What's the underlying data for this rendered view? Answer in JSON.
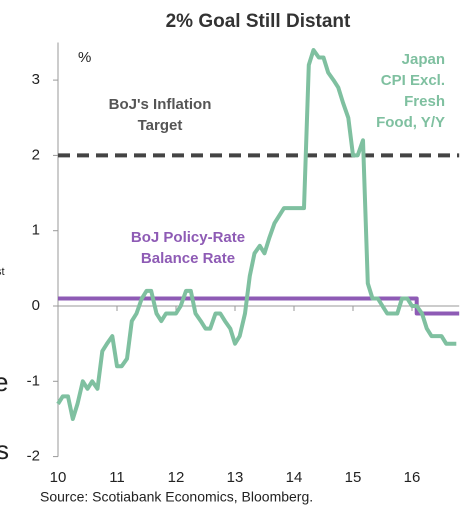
{
  "chart_data": {
    "type": "line",
    "title": "2% Goal Still Distant",
    "y_unit": "%",
    "source": "Source: Scotiabank Economics, Bloomberg.",
    "edge_fragments": [
      "st",
      "e",
      "s"
    ],
    "xlim": [
      10,
      16.8
    ],
    "xticks": [
      10,
      11,
      12,
      13,
      14,
      15,
      16
    ],
    "ylim": [
      -2,
      3.5
    ],
    "yticks": [
      -2,
      -1,
      0,
      1,
      2,
      3
    ],
    "annotations": [
      {
        "lines": [
          "BoJ's Inflation",
          "Target"
        ],
        "color": "#555555"
      },
      {
        "lines": [
          "BoJ Policy-Rate",
          "Balance Rate"
        ],
        "color": "#8e5bb5"
      },
      {
        "lines": [
          "Japan",
          "CPI Excl.",
          "Fresh",
          "Food, Y/Y"
        ],
        "color": "#7fc0a0"
      }
    ],
    "series": [
      {
        "name": "BoJ's Inflation Target",
        "color": "#444444",
        "dashed": true,
        "width": 4,
        "x": [
          10,
          16.8
        ],
        "values": [
          2,
          2
        ]
      },
      {
        "name": "BoJ Policy-Rate Balance Rate",
        "color": "#8e5bb5",
        "dashed": false,
        "width": 4,
        "x": [
          10,
          16.08,
          16.08,
          16.8
        ],
        "values": [
          0.1,
          0.1,
          -0.1,
          -0.1
        ]
      },
      {
        "name": "Japan CPI Excl. Fresh Food, Y/Y",
        "color": "#7fc0a0",
        "dashed": false,
        "width": 4,
        "x": [
          10,
          10.08,
          10.17,
          10.25,
          10.33,
          10.42,
          10.5,
          10.58,
          10.67,
          10.75,
          10.83,
          10.92,
          11,
          11.08,
          11.17,
          11.25,
          11.33,
          11.42,
          11.5,
          11.58,
          11.67,
          11.75,
          11.83,
          11.92,
          12,
          12.08,
          12.17,
          12.25,
          12.33,
          12.42,
          12.5,
          12.58,
          12.67,
          12.75,
          12.83,
          12.92,
          13,
          13.08,
          13.17,
          13.25,
          13.33,
          13.42,
          13.5,
          13.58,
          13.67,
          13.75,
          13.83,
          13.92,
          14,
          14.08,
          14.17,
          14.25,
          14.33,
          14.42,
          14.5,
          14.58,
          14.67,
          14.75,
          14.83,
          14.92,
          15,
          15.08,
          15.17,
          15.25,
          15.33,
          15.42,
          15.5,
          15.58,
          15.67,
          15.75,
          15.83,
          15.92,
          16,
          16.08,
          16.17,
          16.25,
          16.33,
          16.42,
          16.5,
          16.58,
          16.67,
          16.75
        ],
        "values": [
          -1.3,
          -1.2,
          -1.2,
          -1.5,
          -1.3,
          -1.0,
          -1.1,
          -1.0,
          -1.1,
          -0.6,
          -0.5,
          -0.4,
          -0.8,
          -0.8,
          -0.7,
          -0.2,
          -0.1,
          0.1,
          0.2,
          0.2,
          -0.1,
          -0.2,
          -0.1,
          -0.1,
          -0.1,
          0.0,
          0.2,
          0.2,
          -0.1,
          -0.2,
          -0.3,
          -0.3,
          -0.1,
          -0.1,
          -0.2,
          -0.3,
          -0.5,
          -0.4,
          -0.1,
          0.4,
          0.7,
          0.8,
          0.7,
          0.9,
          1.1,
          1.2,
          1.3,
          1.3,
          1.3,
          1.3,
          1.3,
          3.2,
          3.4,
          3.3,
          3.3,
          3.1,
          3.0,
          2.9,
          2.7,
          2.5,
          2.0,
          2.0,
          2.2,
          0.3,
          0.1,
          0.1,
          0.0,
          -0.1,
          -0.1,
          -0.1,
          0.1,
          0.1,
          0.0,
          0.0,
          -0.1,
          -0.3,
          -0.4,
          -0.4,
          -0.4,
          -0.5,
          -0.5,
          -0.5
        ]
      }
    ]
  }
}
